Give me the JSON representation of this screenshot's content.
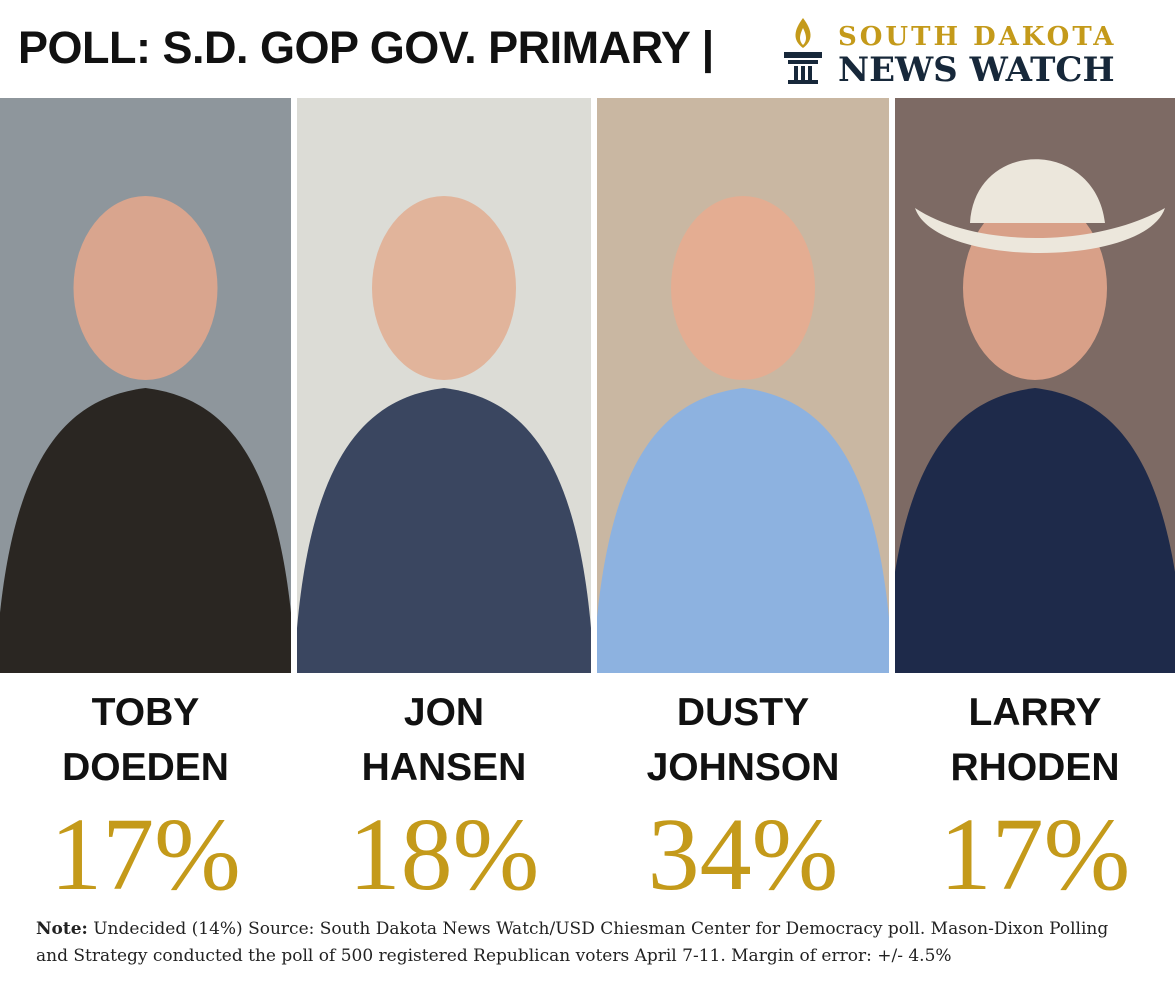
{
  "header": {
    "title": "POLL: S.D. GOP GOV. PRIMARY |",
    "logo_top": "SOUTH DAKOTA",
    "logo_bottom": "NEWS WATCH"
  },
  "candidates": [
    {
      "first": "TOBY",
      "last": "DOEDEN",
      "percent": "17%"
    },
    {
      "first": "JON",
      "last": "HANSEN",
      "percent": "18%"
    },
    {
      "first": "DUSTY",
      "last": "JOHNSON",
      "percent": "34%"
    },
    {
      "first": "LARRY",
      "last": "RHODEN",
      "percent": "17%"
    }
  ],
  "note": {
    "label": "Note:",
    "text": "Undecided (14%) Source: South Dakota News Watch/USD Chiesman Center for Democracy poll. Mason-Dixon Polling and Strategy conducted the poll of 500 registered Republican voters April 7-11. Margin of error: +/- 4.5%"
  }
}
